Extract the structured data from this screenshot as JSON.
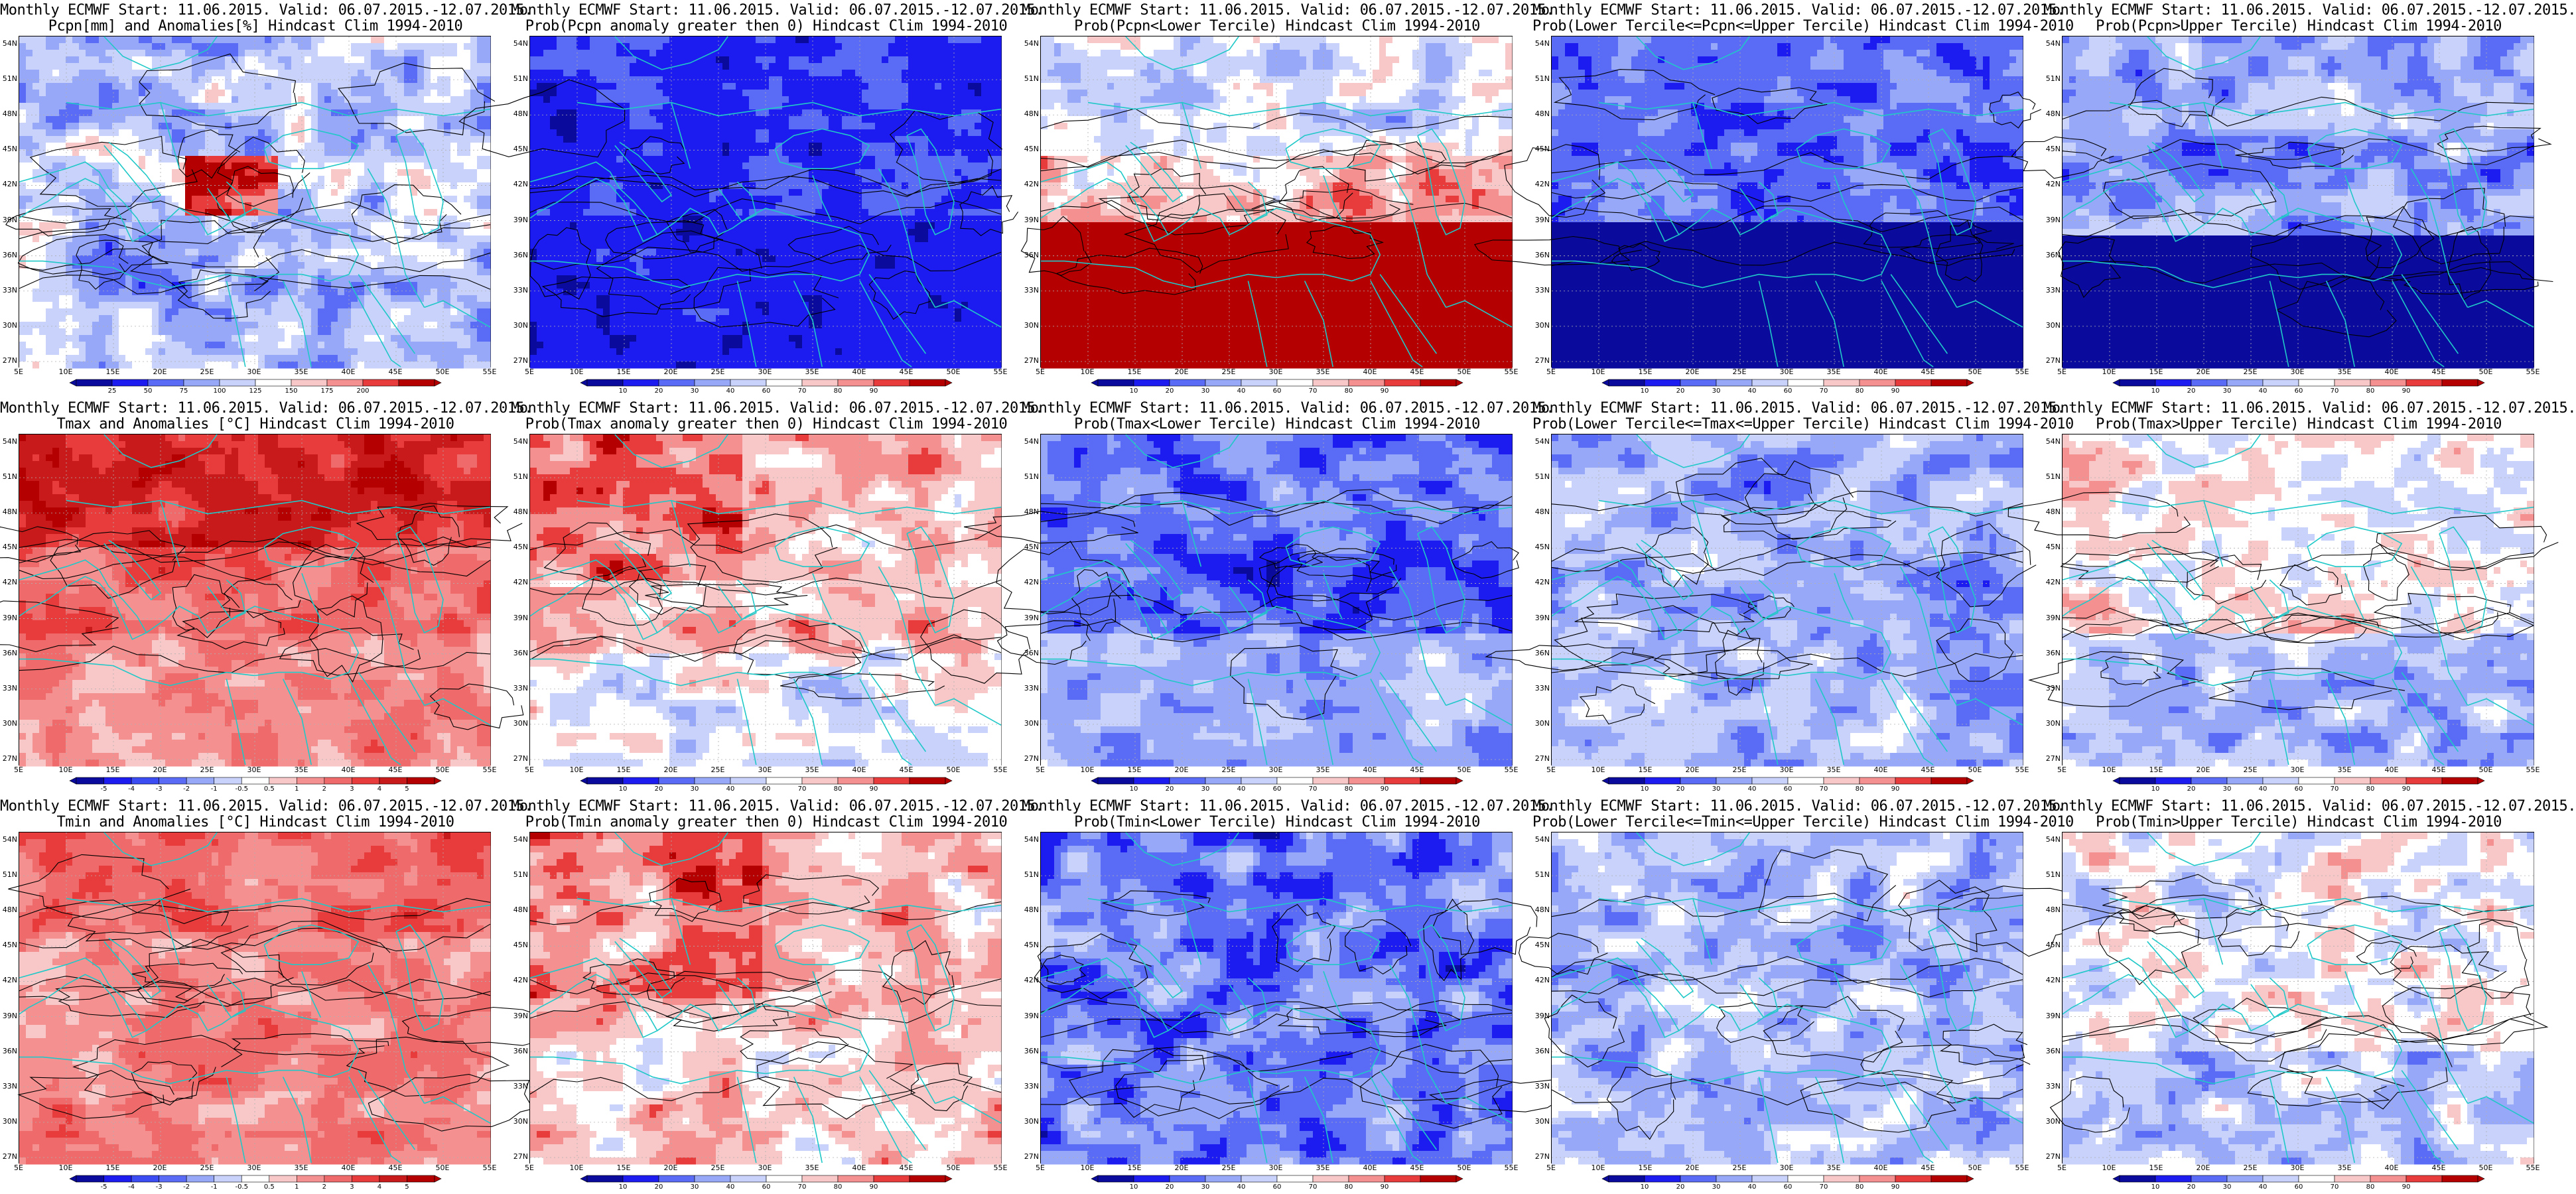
{
  "panels": [
    {
      "line1": "Monthly ECMWF Start: 11.06.2015. Valid: 06.07.2015.-12.07.2015.",
      "line2": "Pcpn[mm] and Anomalies[%] Hindcast Clim 1994-2010",
      "scale": "anom_pcpn",
      "field": "pcpn_anom"
    },
    {
      "line1": "Monthly ECMWF Start: 11.06.2015. Valid: 06.07.2015.-12.07.2015.",
      "line2": "Prob(Pcpn anomaly greater then 0) Hindcast Clim 1994-2010",
      "scale": "prob",
      "field": "pcpn_pos"
    },
    {
      "line1": "Monthly ECMWF Start: 11.06.2015. Valid: 06.07.2015.-12.07.2015.",
      "line2": "Prob(Pcpn<Lower Tercile) Hindcast Clim 1994-2010",
      "scale": "prob",
      "field": "pcpn_low"
    },
    {
      "line1": "Monthly ECMWF Start: 11.06.2015. Valid: 06.07.2015.-12.07.2015.",
      "line2": "Prob(Lower Tercile<=Pcpn<=Upper Tercile) Hindcast Clim 1994-2010",
      "scale": "prob",
      "field": "pcpn_mid"
    },
    {
      "line1": "Monthly ECMWF Start: 11.06.2015. Valid: 06.07.2015.-12.07.2015.",
      "line2": "Prob(Pcpn>Upper Tercile) Hindcast Clim 1994-2010",
      "scale": "prob",
      "field": "pcpn_up"
    },
    {
      "line1": "Monthly ECMWF Start: 11.06.2015. Valid: 06.07.2015.-12.07.2015.",
      "line2": "Tmax and Anomalies [°C] Hindcast Clim 1994-2010",
      "scale": "anom_t",
      "field": "tmax_anom"
    },
    {
      "line1": "Monthly ECMWF Start: 11.06.2015. Valid: 06.07.2015.-12.07.2015.",
      "line2": "Prob(Tmax anomaly greater then 0) Hindcast Clim 1994-2010",
      "scale": "prob",
      "field": "tmax_pos"
    },
    {
      "line1": "Monthly ECMWF Start: 11.06.2015. Valid: 06.07.2015.-12.07.2015.",
      "line2": "Prob(Tmax<Lower Tercile) Hindcast Clim 1994-2010",
      "scale": "prob",
      "field": "tmax_low"
    },
    {
      "line1": "Monthly ECMWF Start: 11.06.2015. Valid: 06.07.2015.-12.07.2015.",
      "line2": "Prob(Lower Tercile<=Tmax<=Upper Tercile) Hindcast Clim 1994-2010",
      "scale": "prob",
      "field": "tmax_mid"
    },
    {
      "line1": "Monthly ECMWF Start: 11.06.2015. Valid: 06.07.2015.-12.07.2015.",
      "line2": "Prob(Tmax>Upper Tercile) Hindcast Clim 1994-2010",
      "scale": "prob",
      "field": "tmax_up"
    },
    {
      "line1": "Monthly ECMWF Start: 11.06.2015. Valid: 06.07.2015.-12.07.2015.",
      "line2": "Tmin and Anomalies [°C] Hindcast Clim 1994-2010",
      "scale": "anom_t",
      "field": "tmin_anom"
    },
    {
      "line1": "Monthly ECMWF Start: 11.06.2015. Valid: 06.07.2015.-12.07.2015.",
      "line2": "Prob(Tmin anomaly greater then 0) Hindcast Clim 1994-2010",
      "scale": "prob",
      "field": "tmin_pos"
    },
    {
      "line1": "Monthly ECMWF Start: 11.06.2015. Valid: 06.07.2015.-12.07.2015.",
      "line2": "Prob(Tmin<Lower Tercile) Hindcast Clim 1994-2010",
      "scale": "prob",
      "field": "tmin_low"
    },
    {
      "line1": "Monthly ECMWF Start: 11.06.2015. Valid: 06.07.2015.-12.07.2015.",
      "line2": "Prob(Lower Tercile<=Tmin<=Upper Tercile) Hindcast Clim 1994-2010",
      "scale": "prob",
      "field": "tmin_mid"
    },
    {
      "line1": "Monthly ECMWF Start: 11.06.2015. Valid: 06.07.2015.-12.07.2015.",
      "line2": "Prob(Tmin>Upper Tercile) Hindcast Clim 1994-2010",
      "scale": "prob",
      "field": "tmin_up"
    }
  ],
  "lat_labels": [
    "54N",
    "51N",
    "48N",
    "45N",
    "42N",
    "39N",
    "36N",
    "33N",
    "30N",
    "27N"
  ],
  "lon_labels": [
    "5E",
    "10E",
    "15E",
    "20E",
    "25E",
    "30E",
    "35E",
    "40E",
    "45E",
    "50E",
    "55E"
  ],
  "scales": {
    "prob": {
      "labels": [
        "10",
        "20",
        "30",
        "40",
        "60",
        "70",
        "80",
        "90"
      ],
      "colors": [
        "#0a0a9c",
        "#1c1cf0",
        "#5a6cf5",
        "#98a8f8",
        "#c8d2fb",
        "#ffffff",
        "#f8c8c8",
        "#f59090",
        "#e83c3c",
        "#b40000"
      ]
    },
    "anom_pcpn": {
      "labels": [
        "25",
        "50",
        "75",
        "100",
        "125",
        "150",
        "175",
        "200"
      ],
      "colors": [
        "#0a0a9c",
        "#1c1cf0",
        "#5a6cf5",
        "#98a8f8",
        "#c8d2fb",
        "#ffffff",
        "#f8c8c8",
        "#f59090",
        "#e83c3c",
        "#b40000"
      ]
    },
    "anom_t": {
      "labels": [
        "-5",
        "-4",
        "-3",
        "-2",
        "-1",
        "-0.5",
        "0.5",
        "1",
        "2",
        "3",
        "4",
        "5"
      ],
      "colors": [
        "#0a0a9c",
        "#1c1cf0",
        "#3a4cf2",
        "#5a6cf5",
        "#98a8f8",
        "#c8d2fb",
        "#ffffff",
        "#f8c8c8",
        "#f59090",
        "#ef6a6a",
        "#e83c3c",
        "#c81a1a",
        "#b40000"
      ]
    }
  },
  "colors": {
    "coast": "#20c8c8",
    "contour": "#000000",
    "grid_dash": "#b0b0b0"
  }
}
